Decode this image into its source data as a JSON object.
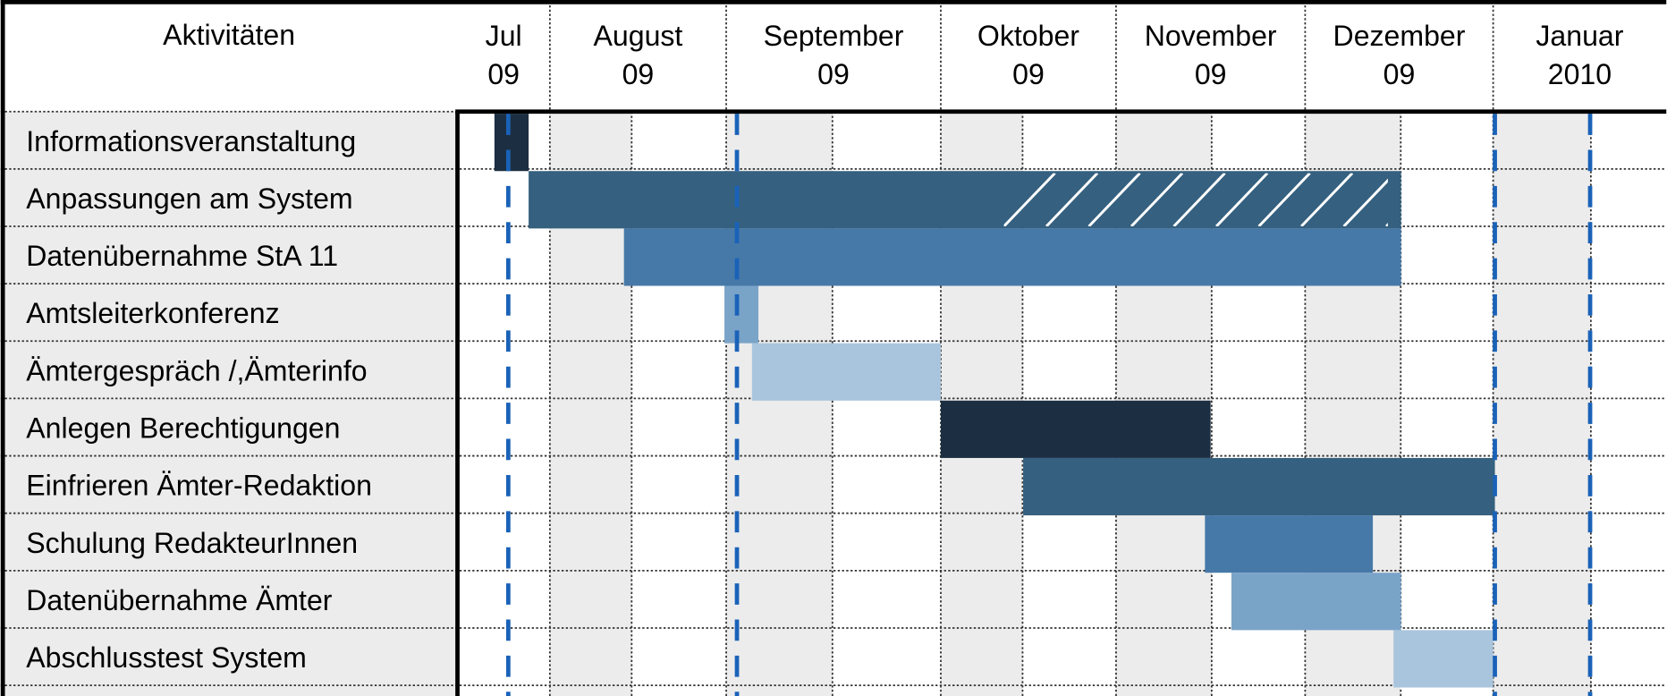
{
  "chart_data": {
    "type": "gantt",
    "header": "Aktivitäten",
    "categories": [
      {
        "month": "Jul",
        "year": "09"
      },
      {
        "month": "August",
        "year": "09"
      },
      {
        "month": "September",
        "year": "09"
      },
      {
        "month": "Oktober",
        "year": "09"
      },
      {
        "month": "November",
        "year": "09"
      },
      {
        "month": "Dezember",
        "year": "09"
      },
      {
        "month": "Januar",
        "year": "2010"
      }
    ],
    "tasks": [
      {
        "name": "Informationsveranstaltung",
        "start": 0.4,
        "end": 0.77,
        "color": "#1c2f42"
      },
      {
        "name": "Anpassungen am System",
        "start": 0.77,
        "end": 5.51,
        "color": "#35607f",
        "hatch_start": 3.36,
        "hatch_end": 5.44
      },
      {
        "name": "Datenübernahme StA 11",
        "start": 1.42,
        "end": 5.51,
        "color": "#4679a8"
      },
      {
        "name": "Amtsleiterkonferenz",
        "start": 1.99,
        "end": 2.15,
        "color": "#7aa3c8"
      },
      {
        "name": "Ämtergespräch /,Ämterinfo",
        "start": 2.12,
        "end": 3.0,
        "color": "#a9c5dd"
      },
      {
        "name": "Anlegen Berechtigungen",
        "start": 3.0,
        "end": 4.5,
        "color": "#1c2f42"
      },
      {
        "name": "Einfrieren Ämter-Redaktion",
        "start": 3.47,
        "end": 6.01,
        "color": "#35607f"
      },
      {
        "name": "Schulung RedakteurInnen",
        "start": 4.47,
        "end": 5.36,
        "color": "#4679a8"
      },
      {
        "name": "Datenübernahme Ämter",
        "start": 4.61,
        "end": 5.51,
        "color": "#7aa3c8"
      },
      {
        "name": "Abschlusstest System",
        "start": 5.47,
        "end": 6.0,
        "color": "#a9c5dd"
      }
    ],
    "markers": [
      0.55,
      2.05,
      6.01,
      6.56
    ],
    "marker_color": "#1a62b8"
  }
}
